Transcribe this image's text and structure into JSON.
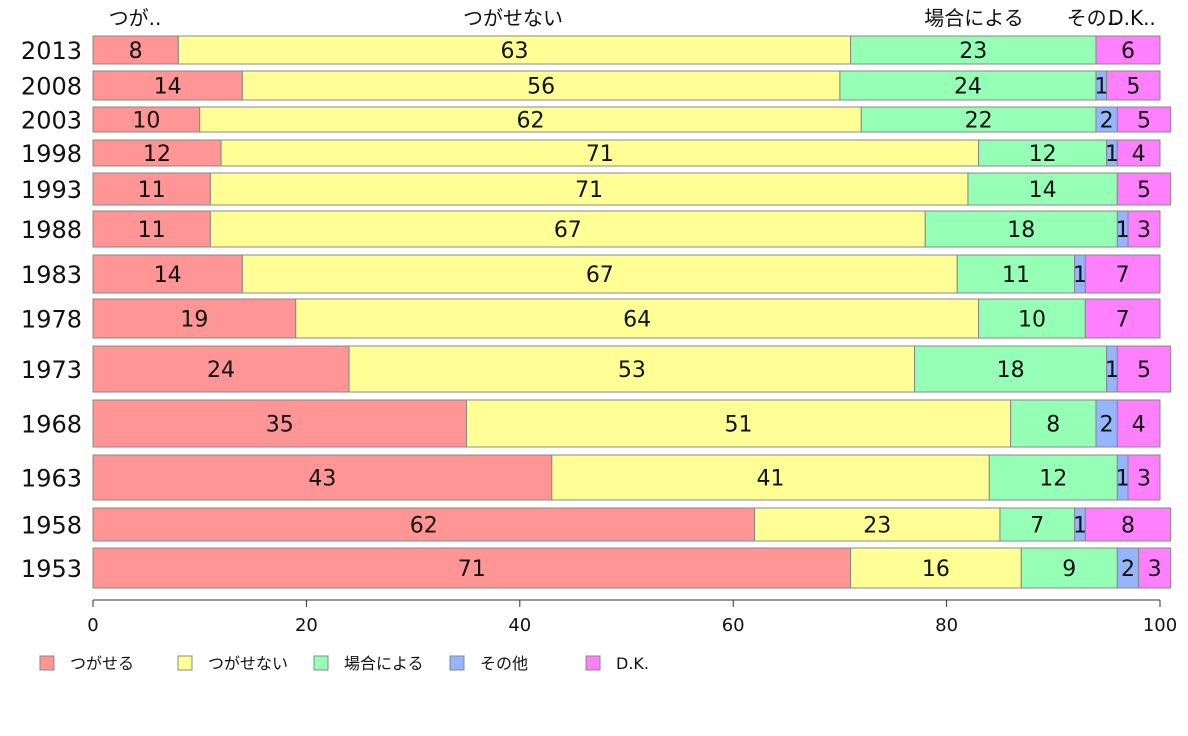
{
  "chart_data": {
    "type": "bar",
    "orientation": "horizontal",
    "stacked": true,
    "categories": [
      "2013",
      "2008",
      "2003",
      "1998",
      "1993",
      "1988",
      "1983",
      "1978",
      "1973",
      "1968",
      "1963",
      "1958",
      "1953"
    ],
    "series": [
      {
        "name": "つがせる",
        "short": "つが..",
        "color": "#ff9595",
        "values": [
          8,
          14,
          10,
          12,
          11,
          11,
          14,
          19,
          24,
          35,
          43,
          62,
          71
        ]
      },
      {
        "name": "つがせない",
        "short": "つがせない",
        "color": "#ffff95",
        "values": [
          63,
          56,
          62,
          71,
          71,
          67,
          67,
          64,
          53,
          51,
          41,
          23,
          16
        ]
      },
      {
        "name": "場合による",
        "short": "場合による",
        "color": "#95ffb5",
        "values": [
          23,
          24,
          22,
          12,
          14,
          18,
          11,
          10,
          18,
          8,
          12,
          7,
          9
        ]
      },
      {
        "name": "その他",
        "short": "その..",
        "color": "#95b5ff",
        "values": [
          0,
          1,
          2,
          1,
          0,
          1,
          1,
          0,
          1,
          2,
          1,
          1,
          2
        ]
      },
      {
        "name": "D.K.",
        "short": "D.K..",
        "color": "#ff80ff",
        "values": [
          6,
          5,
          5,
          4,
          5,
          3,
          7,
          7,
          5,
          4,
          3,
          8,
          3
        ]
      }
    ],
    "xlim": [
      0,
      100
    ],
    "x_ticks": [
      0,
      20,
      40,
      60,
      80,
      100
    ],
    "legend_position": "bottom",
    "top_labels": [
      "つが..",
      "つがせない",
      "場合による",
      "その..",
      "D.K.."
    ]
  }
}
